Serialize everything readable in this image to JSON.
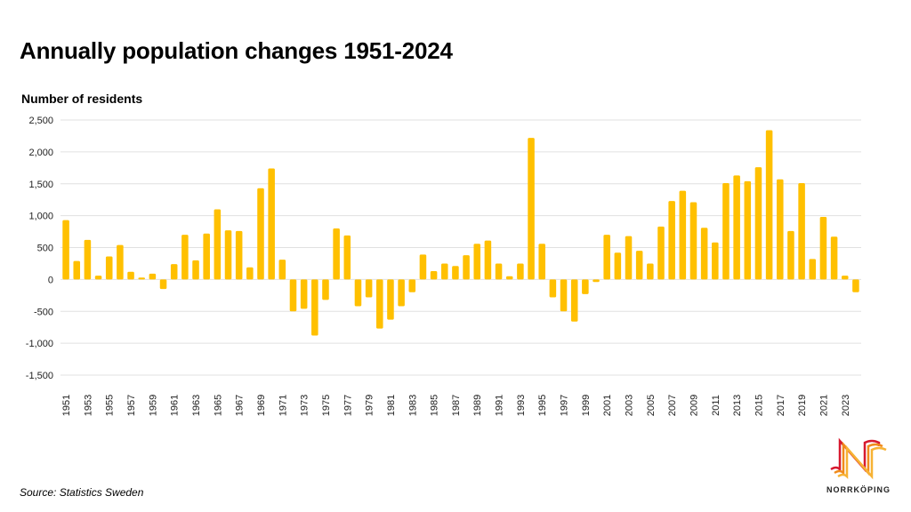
{
  "page": {
    "title": "Annually population changes 1951-2024",
    "source": "Source: Statistics Sweden",
    "logo_text": "NORRKÖPING"
  },
  "colors": {
    "bar": "#FFC000",
    "grid": "#e0e0e0"
  },
  "chart_data": {
    "type": "bar",
    "title": "Annually population changes 1951-2024",
    "xlabel": "",
    "ylabel": "Number of residents",
    "ylim": [
      -1500,
      2500
    ],
    "yticks": [
      2500,
      2000,
      1500,
      1000,
      500,
      0,
      -500,
      -1000,
      -1500
    ],
    "ytick_labels": [
      "2,500",
      "2,000",
      "1,500",
      "1,000",
      "500",
      "0",
      "-500",
      "-1,000",
      "-1,500"
    ],
    "grid": true,
    "legend": "none",
    "categories": [
      "1951",
      "1952",
      "1953",
      "1954",
      "1955",
      "1956",
      "1957",
      "1958",
      "1959",
      "1960",
      "1961",
      "1962",
      "1963",
      "1964",
      "1965",
      "1966",
      "1967",
      "1968",
      "1969",
      "1970",
      "1971",
      "1972",
      "1973",
      "1974",
      "1975",
      "1976",
      "1977",
      "1978",
      "1979",
      "1980",
      "1981",
      "1982",
      "1983",
      "1984",
      "1985",
      "1986",
      "1987",
      "1988",
      "1989",
      "1990",
      "1991",
      "1992",
      "1993",
      "1994",
      "1995",
      "1996",
      "1997",
      "1998",
      "1999",
      "2000",
      "2001",
      "2002",
      "2003",
      "2004",
      "2005",
      "2006",
      "2007",
      "2008",
      "2009",
      "2010",
      "2011",
      "2012",
      "2013",
      "2014",
      "2015",
      "2016",
      "2017",
      "2018",
      "2019",
      "2020",
      "2021",
      "2022",
      "2023",
      "2024"
    ],
    "values": [
      930,
      290,
      620,
      60,
      360,
      540,
      120,
      30,
      90,
      -150,
      240,
      700,
      300,
      720,
      1100,
      770,
      760,
      190,
      1430,
      1740,
      310,
      -500,
      -460,
      -880,
      -320,
      800,
      690,
      -420,
      -280,
      -770,
      -630,
      -420,
      -200,
      390,
      130,
      250,
      210,
      380,
      560,
      610,
      250,
      50,
      250,
      2220,
      560,
      -280,
      -500,
      -660,
      -230,
      -40,
      700,
      420,
      680,
      450,
      250,
      830,
      1230,
      1390,
      1210,
      810,
      580,
      1510,
      1630,
      1540,
      1760,
      2340,
      1570,
      760,
      1510,
      320,
      980,
      670,
      60,
      -200
    ],
    "tick_labels_shown": [
      "1951",
      "1953",
      "1955",
      "1957",
      "1959",
      "1961",
      "1963",
      "1965",
      "1967",
      "1969",
      "1971",
      "1973",
      "1975",
      "1977",
      "1979",
      "1981",
      "1983",
      "1985",
      "1987",
      "1989",
      "1991",
      "1993",
      "1995",
      "1997",
      "1999",
      "2001",
      "2003",
      "2005",
      "2007",
      "2009",
      "2011",
      "2013",
      "2015",
      "2017",
      "2019",
      "2021",
      "2023"
    ]
  }
}
